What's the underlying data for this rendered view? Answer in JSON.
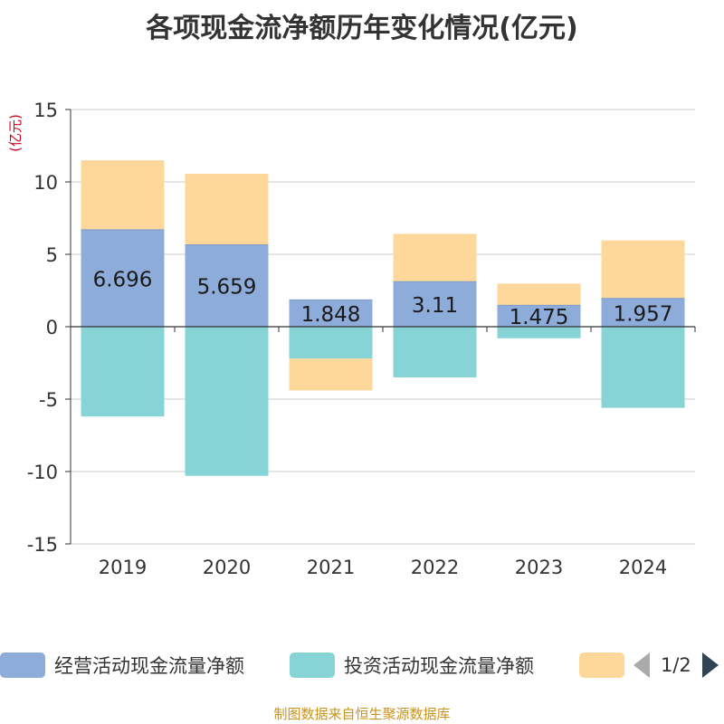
{
  "chart_data": {
    "type": "bar",
    "stacked": true,
    "title": "各项现金流净额历年变化情况(亿元)",
    "ylabel": "(亿元)",
    "xlabel": "",
    "ylim": [
      -15,
      15
    ],
    "yticks": [
      15,
      10,
      5,
      0,
      -5,
      -10,
      -15
    ],
    "grid": true,
    "categories": [
      "2019",
      "2020",
      "2021",
      "2022",
      "2023",
      "2024"
    ],
    "series": [
      {
        "name": "经营活动现金流量净额",
        "color": "#8eacd9",
        "values": [
          6.696,
          5.659,
          1.848,
          3.11,
          1.475,
          1.957
        ],
        "labels": [
          "6.696",
          "5.659",
          "1.848",
          "3.11",
          "1.475",
          "1.957"
        ]
      },
      {
        "name": "投资活动现金流量净额",
        "color": "#86d4d6",
        "values": [
          -6.2,
          -10.3,
          -2.2,
          -3.5,
          -0.8,
          -5.6
        ]
      },
      {
        "name": "",
        "color": "#fdd89a",
        "values": [
          4.8,
          4.9,
          -2.2,
          3.3,
          1.5,
          4.0
        ]
      }
    ]
  },
  "legend": {
    "items": [
      {
        "label": "经营活动现金流量净额",
        "color": "#8eacd9"
      },
      {
        "label": "投资活动现金流量净额",
        "color": "#86d4d6"
      },
      {
        "label": "",
        "color": "#fdd89a"
      }
    ],
    "page": "1/2"
  },
  "footer": "制图数据来自恒生聚源数据库",
  "colors": {
    "axis_label": "#d0021b",
    "grid": "#cccccc",
    "axis": "#333333",
    "text": "#333333"
  }
}
